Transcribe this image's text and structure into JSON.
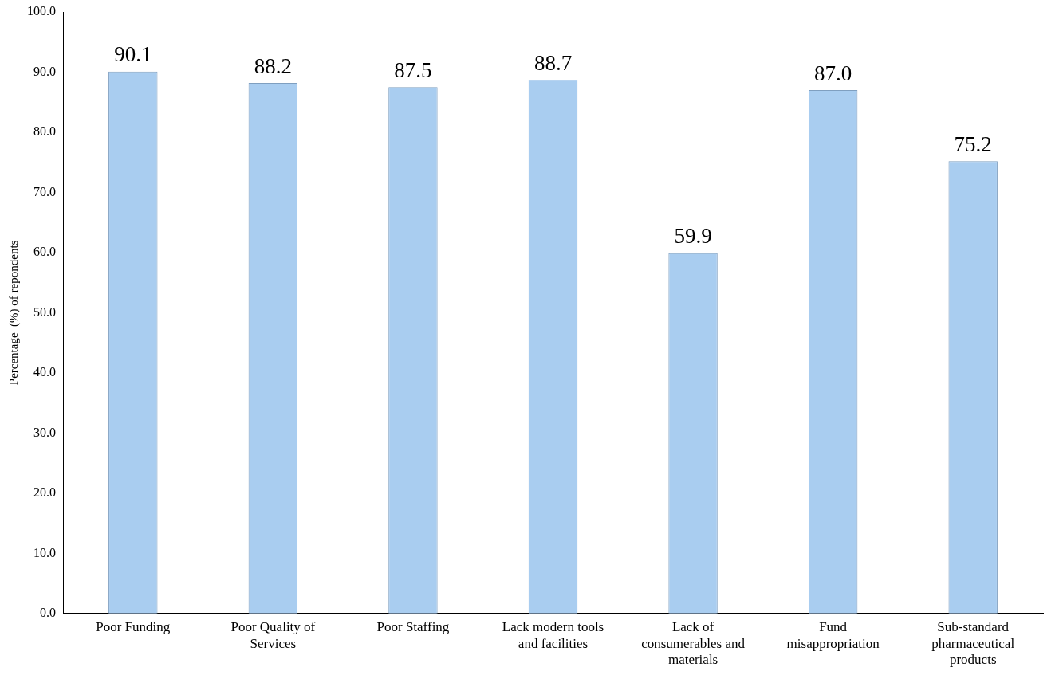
{
  "chart_data": {
    "type": "bar",
    "ylabel": "Percentage  (%) of repondents",
    "categories": [
      "Poor Funding",
      "Poor Quality of Services",
      "Poor Staffing",
      "Lack modern tools and facilities",
      "Lack of consumerables and materials",
      "Fund misappropriation",
      "Sub-standard pharmaceutical products"
    ],
    "values": [
      90.1,
      88.2,
      87.5,
      88.7,
      59.9,
      87.0,
      75.2
    ],
    "value_labels": [
      "90.1",
      "88.2",
      "87.5",
      "88.7",
      "59.9",
      "87.0",
      "75.2"
    ],
    "color": "#a9cdf0",
    "ylim": [
      0,
      100
    ],
    "yticks": [
      {
        "value": 0,
        "label": "0.0"
      },
      {
        "value": 10,
        "label": "10.0"
      },
      {
        "value": 20,
        "label": "20.0"
      },
      {
        "value": 30,
        "label": "30.0"
      },
      {
        "value": 40,
        "label": "40.0"
      },
      {
        "value": 50,
        "label": "50.0"
      },
      {
        "value": 60,
        "label": "60.0"
      },
      {
        "value": 70,
        "label": "70.0"
      },
      {
        "value": 80,
        "label": "80.0"
      },
      {
        "value": 90,
        "label": "90.0"
      },
      {
        "value": 100,
        "label": "100.0"
      }
    ],
    "grid": false,
    "legend": false
  }
}
